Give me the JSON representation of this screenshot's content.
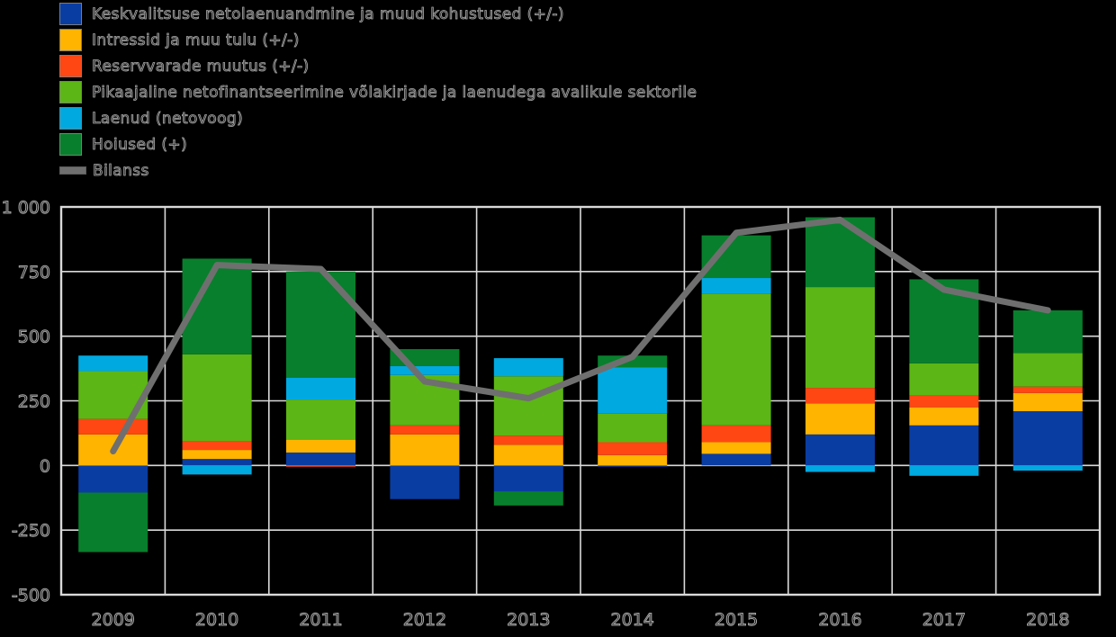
{
  "legend": {
    "items": [
      {
        "label": "Keskvalitsuse netolaenuandmine ja muud kohustused (+/-)",
        "color": "#0a3da2",
        "type": "box"
      },
      {
        "label": "Intressid ja muu tulu (+/-)",
        "color": "#ffb400",
        "type": "box"
      },
      {
        "label": "Reservvarade muutus (+/-)",
        "color": "#ff4713",
        "type": "box"
      },
      {
        "label": "Pikaajaline netofinantseerimine võlakirjade ja laenudega avalikule sektorile",
        "color": "#5cb615",
        "type": "box"
      },
      {
        "label": "Laenud (netovoog)",
        "color": "#00a9e0",
        "type": "box"
      },
      {
        "label": "Hoiused (+)",
        "color": "#087f2c",
        "type": "box"
      },
      {
        "label": "Bilanss",
        "color": "#6f6f6f",
        "type": "line"
      }
    ]
  },
  "chart_data": {
    "type": "bar",
    "subtype": "stacked-bar-with-line",
    "categories": [
      "2009",
      "2010",
      "2011",
      "2012",
      "2013",
      "2014",
      "2015",
      "2016",
      "2017",
      "2018"
    ],
    "series": [
      {
        "name": "Keskvalitsuse netolaenuandmine ja muud kohustused (+/-)",
        "color": "#0a3da2",
        "values": [
          -105,
          25,
          50,
          -130,
          -100,
          -5,
          45,
          120,
          155,
          210
        ]
      },
      {
        "name": "Intressid ja muu tulu (+/-)",
        "color": "#ffb400",
        "values": [
          120,
          35,
          50,
          120,
          80,
          40,
          45,
          120,
          70,
          70
        ]
      },
      {
        "name": "Reservvarade muutus (+/-)",
        "color": "#ff4713",
        "values": [
          60,
          35,
          -5,
          35,
          35,
          50,
          65,
          60,
          45,
          25
        ]
      },
      {
        "name": "Pikaajaline netofinantseerimine võlakirjade ja laenudega avalikule sektorile",
        "color": "#5cb615",
        "values": [
          185,
          335,
          155,
          195,
          230,
          110,
          510,
          390,
          125,
          130
        ]
      },
      {
        "name": "Laenud (netovoog)",
        "color": "#00a9e0",
        "values": [
          60,
          -35,
          85,
          35,
          70,
          180,
          60,
          -25,
          -40,
          -20
        ]
      },
      {
        "name": "Hoiused (+)",
        "color": "#087f2c",
        "values": [
          -230,
          370,
          410,
          65,
          -55,
          45,
          165,
          270,
          325,
          165
        ]
      }
    ],
    "line_series": {
      "name": "Bilanss",
      "color": "#6f6f6f",
      "values": [
        55,
        775,
        760,
        325,
        260,
        420,
        900,
        950,
        680,
        600
      ]
    },
    "ylim": [
      -500,
      1000
    ],
    "yticks": [
      1000,
      750,
      500,
      250,
      0,
      -250,
      -500
    ],
    "ytick_labels": [
      "1 000",
      "750",
      "500",
      "250",
      "0",
      "-250",
      "-500"
    ],
    "grid": true,
    "legend_position": "top-left",
    "colors": {
      "background": "#000000",
      "grid": "#d9d9d9",
      "tick_text_stroke": "#a6a6a6",
      "tick_text_fill": "#141414",
      "balance_line": "#6f6f6f"
    }
  }
}
